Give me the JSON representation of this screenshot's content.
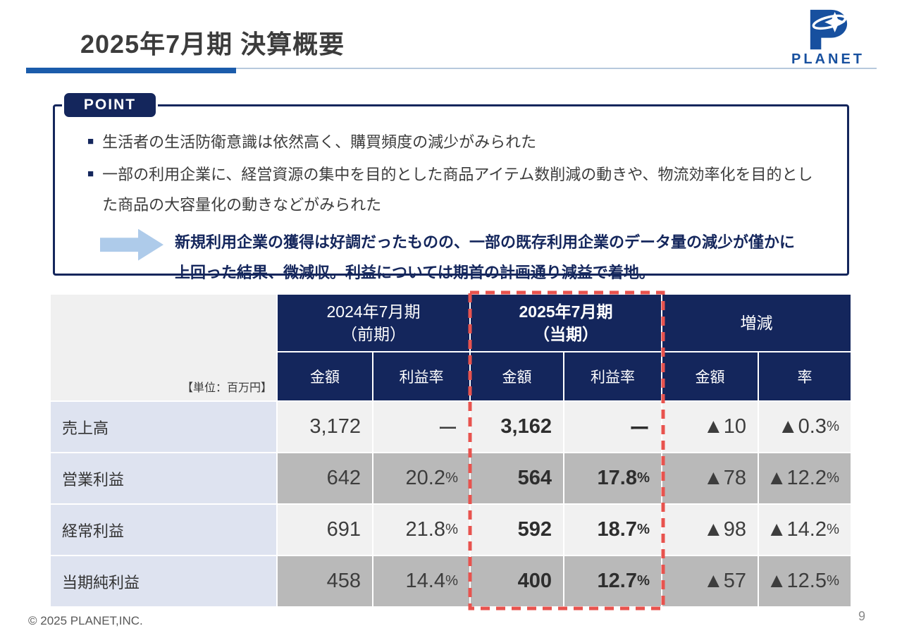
{
  "page": {
    "title": "2025年7月期 決算概要",
    "copyright": "© 2025 PLANET,INC.",
    "page_number": "9"
  },
  "logo": {
    "text": "PLANET"
  },
  "point_box": {
    "label": "POINT",
    "bullet_marker": "■",
    "bullets": [
      "生活者の生活防衛意識は依然高く、購買頻度の減少がみられた",
      "一部の利用企業に、経営資源の集中を目的とした商品アイテム数削減の動きや、物流効率化を目的とした商品の大容量化の動きなどがみられた"
    ],
    "highlight_line1": "新規利用企業の獲得は好調だったものの、一部の既存利用企業のデータ量の減少が僅かに",
    "highlight_line2": "上回った結果、微減収。利益については期首の計画通り減益で着地。"
  },
  "table": {
    "unit_note": "【単位：百万円】",
    "groups": [
      {
        "line1": "2024年7月期",
        "line2": "（前期）",
        "sub1": "金額",
        "sub2": "利益率"
      },
      {
        "line1": "2025年7月期",
        "line2": "（当期）",
        "sub1": "金額",
        "sub2": "利益率"
      },
      {
        "line1": "増減",
        "line2": "",
        "sub1": "金額",
        "sub2": "率"
      }
    ],
    "rows": [
      {
        "label": "売上高",
        "prev_amount": "3,172",
        "prev_rate": "ー",
        "cur_amount": "3,162",
        "cur_rate": "ー",
        "diff_amount": "▲10",
        "diff_rate": "▲0.3%"
      },
      {
        "label": "営業利益",
        "prev_amount": "642",
        "prev_rate": "20.2%",
        "cur_amount": "564",
        "cur_rate": "17.8%",
        "diff_amount": "▲78",
        "diff_rate": "▲12.2%"
      },
      {
        "label": "経常利益",
        "prev_amount": "691",
        "prev_rate": "21.8%",
        "cur_amount": "592",
        "cur_rate": "18.7%",
        "diff_amount": "▲98",
        "diff_rate": "▲14.2%"
      },
      {
        "label": "当期純利益",
        "prev_amount": "458",
        "prev_rate": "14.4%",
        "cur_amount": "400",
        "cur_rate": "12.7%",
        "diff_amount": "▲57",
        "diff_rate": "▲12.5%"
      }
    ],
    "highlight_color": "#e8534e",
    "header_color": "#14265c"
  }
}
